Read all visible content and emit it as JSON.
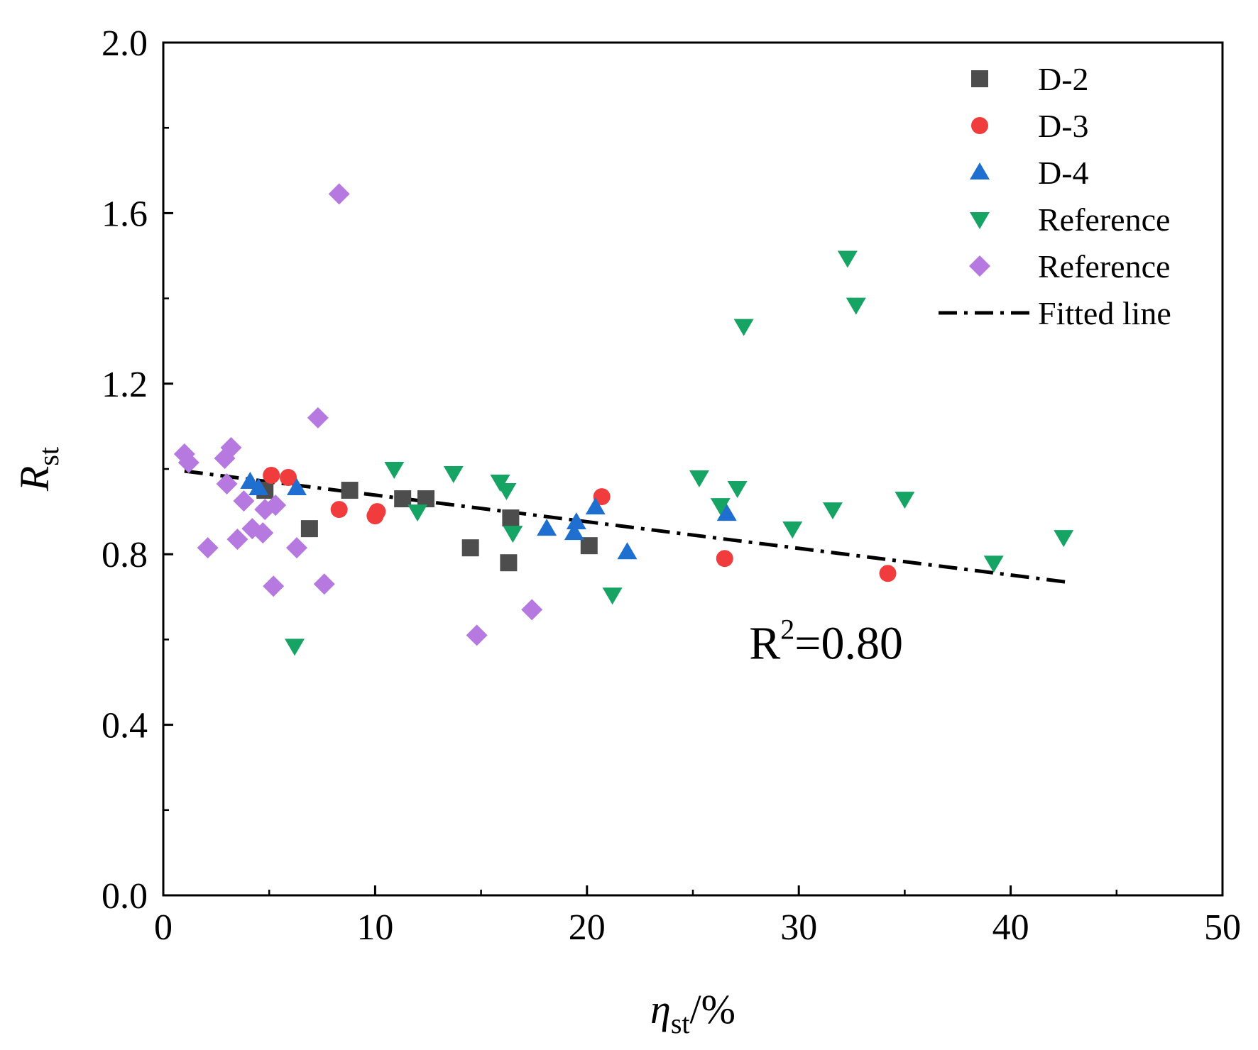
{
  "chart_data": {
    "type": "scatter",
    "title": "",
    "xlabel": {
      "main": "η",
      "sub": "st",
      "suffix": "/%"
    },
    "ylabel": {
      "main": "R",
      "sub": "st"
    },
    "xlim": [
      0,
      50
    ],
    "ylim": [
      0,
      2.0
    ],
    "x_ticks": [
      0,
      10,
      20,
      30,
      40,
      50
    ],
    "x_tick_labels": [
      "0",
      "10",
      "20",
      "30",
      "40",
      "50"
    ],
    "x_minor_ticks": [
      5,
      15,
      25,
      35,
      45
    ],
    "y_ticks": [
      0,
      0.4,
      0.8,
      1.2,
      1.6,
      2.0
    ],
    "y_tick_labels": [
      "0.0",
      "0.4",
      "0.8",
      "1.2",
      "1.6",
      "2.0"
    ],
    "y_minor_ticks": [
      0.2,
      0.6,
      1.0,
      1.4,
      1.8
    ],
    "grid": false,
    "legend_position": "top-right",
    "series": [
      {
        "name": "D-2",
        "marker": "square",
        "color": "#4d4d4d",
        "points": [
          [
            4.8,
            0.95
          ],
          [
            6.9,
            0.86
          ],
          [
            8.8,
            0.95
          ],
          [
            11.3,
            0.93
          ],
          [
            12.4,
            0.93
          ],
          [
            14.5,
            0.815
          ],
          [
            16.3,
            0.78
          ],
          [
            16.4,
            0.885
          ],
          [
            20.1,
            0.82
          ]
        ]
      },
      {
        "name": "D-3",
        "marker": "circle",
        "color": "#f03c3c",
        "points": [
          [
            5.1,
            0.985
          ],
          [
            5.9,
            0.98
          ],
          [
            8.3,
            0.905
          ],
          [
            10.0,
            0.89
          ],
          [
            10.1,
            0.9
          ],
          [
            20.7,
            0.935
          ],
          [
            26.5,
            0.79
          ],
          [
            34.2,
            0.755
          ]
        ]
      },
      {
        "name": "D-4",
        "marker": "triangle-up",
        "color": "#1f6fd1",
        "points": [
          [
            4.1,
            0.97
          ],
          [
            4.5,
            0.955
          ],
          [
            6.3,
            0.955
          ],
          [
            18.1,
            0.86
          ],
          [
            19.4,
            0.85
          ],
          [
            19.5,
            0.875
          ],
          [
            20.4,
            0.91
          ],
          [
            21.9,
            0.805
          ],
          [
            26.6,
            0.895
          ]
        ]
      },
      {
        "name": "Reference",
        "marker": "triangle-down",
        "color": "#16a464",
        "points": [
          [
            6.2,
            0.585
          ],
          [
            10.9,
            1.0
          ],
          [
            12.0,
            0.9
          ],
          [
            13.7,
            0.99
          ],
          [
            15.9,
            0.97
          ],
          [
            16.2,
            0.95
          ],
          [
            16.5,
            0.85
          ],
          [
            21.2,
            0.705
          ],
          [
            25.3,
            0.98
          ],
          [
            26.3,
            0.915
          ],
          [
            27.1,
            0.955
          ],
          [
            27.4,
            1.335
          ],
          [
            29.7,
            0.86
          ],
          [
            31.6,
            0.905
          ],
          [
            32.3,
            1.495
          ],
          [
            32.7,
            1.385
          ],
          [
            35.0,
            0.93
          ],
          [
            39.2,
            0.78
          ],
          [
            42.5,
            0.84
          ]
        ]
      },
      {
        "name": "Reference",
        "marker": "diamond",
        "color": "#b579e0",
        "points": [
          [
            1.0,
            1.035
          ],
          [
            1.2,
            1.015
          ],
          [
            2.1,
            0.815
          ],
          [
            2.9,
            1.025
          ],
          [
            3.0,
            0.965
          ],
          [
            3.2,
            1.05
          ],
          [
            3.5,
            0.835
          ],
          [
            3.8,
            0.925
          ],
          [
            4.2,
            0.86
          ],
          [
            4.7,
            0.85
          ],
          [
            4.8,
            0.905
          ],
          [
            5.2,
            0.725
          ],
          [
            5.3,
            0.915
          ],
          [
            6.3,
            0.815
          ],
          [
            7.3,
            1.12
          ],
          [
            7.6,
            0.73
          ],
          [
            8.3,
            1.645
          ],
          [
            14.8,
            0.61
          ],
          [
            17.4,
            0.67
          ]
        ]
      }
    ],
    "fitted_line": {
      "name": "Fitted line",
      "style": "dash-dot",
      "color": "#000000",
      "x": [
        1.0,
        42.6
      ],
      "y": [
        0.995,
        0.735
      ]
    },
    "annotation": {
      "base": "R",
      "exp": "2",
      "value": "=0.80",
      "at": [
        30.0,
        0.595
      ]
    }
  }
}
